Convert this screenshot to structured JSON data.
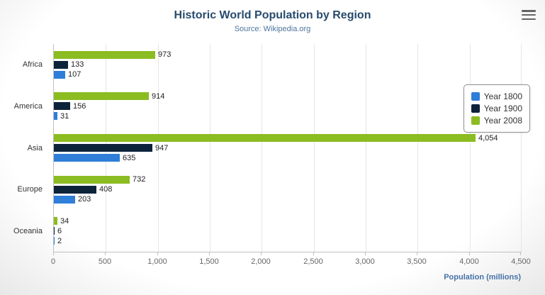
{
  "chart_data": {
    "type": "bar",
    "title": "Historic World Population by Region",
    "subtitle": "Source: Wikipedia.org",
    "xlabel": "Population (millions)",
    "categories": [
      "Africa",
      "America",
      "Asia",
      "Europe",
      "Oceania"
    ],
    "series": [
      {
        "name": "Year 1800",
        "color": "#2f7ed8",
        "values": [
          107,
          31,
          635,
          203,
          2
        ]
      },
      {
        "name": "Year 1900",
        "color": "#0d233a",
        "values": [
          133,
          156,
          947,
          408,
          6
        ]
      },
      {
        "name": "Year 2008",
        "color": "#8bbc21",
        "values": [
          973,
          914,
          4054,
          732,
          34
        ]
      }
    ],
    "row_order": [
      2,
      1,
      0
    ],
    "xlim": [
      0,
      4500
    ],
    "ticks": [
      0,
      500,
      1000,
      1500,
      2000,
      2500,
      3000,
      3500,
      4000,
      4500
    ],
    "tick_labels": [
      "0",
      "500",
      "1,000",
      "1,500",
      "2,000",
      "2,500",
      "3,000",
      "3,500",
      "4,000",
      "4,500"
    ],
    "grid": true,
    "legend_position": "right"
  }
}
